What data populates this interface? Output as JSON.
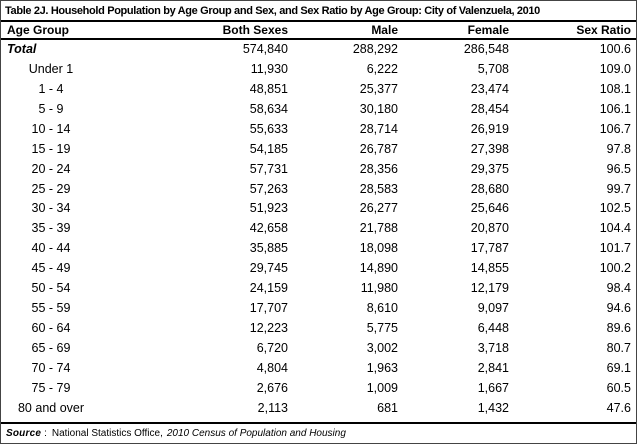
{
  "title": "Table 2J. Household Population by Age Group and Sex, and Sex Ratio by Age Group: City of Valenzuela, 2010",
  "table": {
    "columns": [
      "Age Group",
      "Both Sexes",
      "Male",
      "Female",
      "Sex Ratio"
    ],
    "total_row": {
      "age": "Total",
      "both_sexes": "574,840",
      "male": "288,292",
      "female": "286,548",
      "sex_ratio": "100.6"
    },
    "rows": [
      {
        "age": "Under 1",
        "both_sexes": "11,930",
        "male": "6,222",
        "female": "5,708",
        "sex_ratio": "109.0"
      },
      {
        "age": "1 - 4",
        "both_sexes": "48,851",
        "male": "25,377",
        "female": "23,474",
        "sex_ratio": "108.1"
      },
      {
        "age": "5 - 9",
        "both_sexes": "58,634",
        "male": "30,180",
        "female": "28,454",
        "sex_ratio": "106.1"
      },
      {
        "age": "10 - 14",
        "both_sexes": "55,633",
        "male": "28,714",
        "female": "26,919",
        "sex_ratio": "106.7"
      },
      {
        "age": "15 - 19",
        "both_sexes": "54,185",
        "male": "26,787",
        "female": "27,398",
        "sex_ratio": "97.8"
      },
      {
        "age": "20 - 24",
        "both_sexes": "57,731",
        "male": "28,356",
        "female": "29,375",
        "sex_ratio": "96.5"
      },
      {
        "age": "25 - 29",
        "both_sexes": "57,263",
        "male": "28,583",
        "female": "28,680",
        "sex_ratio": "99.7"
      },
      {
        "age": "30 - 34",
        "both_sexes": "51,923",
        "male": "26,277",
        "female": "25,646",
        "sex_ratio": "102.5"
      },
      {
        "age": "35 - 39",
        "both_sexes": "42,658",
        "male": "21,788",
        "female": "20,870",
        "sex_ratio": "104.4"
      },
      {
        "age": "40 - 44",
        "both_sexes": "35,885",
        "male": "18,098",
        "female": "17,787",
        "sex_ratio": "101.7"
      },
      {
        "age": "45 - 49",
        "both_sexes": "29,745",
        "male": "14,890",
        "female": "14,855",
        "sex_ratio": "100.2"
      },
      {
        "age": "50 - 54",
        "both_sexes": "24,159",
        "male": "11,980",
        "female": "12,179",
        "sex_ratio": "98.4"
      },
      {
        "age": "55 - 59",
        "both_sexes": "17,707",
        "male": "8,610",
        "female": "9,097",
        "sex_ratio": "94.6"
      },
      {
        "age": "60 - 64",
        "both_sexes": "12,223",
        "male": "5,775",
        "female": "6,448",
        "sex_ratio": "89.6"
      },
      {
        "age": "65 - 69",
        "both_sexes": "6,720",
        "male": "3,002",
        "female": "3,718",
        "sex_ratio": "80.7"
      },
      {
        "age": "70 - 74",
        "both_sexes": "4,804",
        "male": "1,963",
        "female": "2,841",
        "sex_ratio": "69.1"
      },
      {
        "age": "75 - 79",
        "both_sexes": "2,676",
        "male": "1,009",
        "female": "1,667",
        "sex_ratio": "60.5"
      },
      {
        "age": "80 and over",
        "both_sexes": "2,113",
        "male": "681",
        "female": "1,432",
        "sex_ratio": "47.6"
      }
    ]
  },
  "source": {
    "label": "Source",
    "separator": ":",
    "organization": "National Statistics Office,",
    "publication": "2010 Census of Population and Housing"
  }
}
